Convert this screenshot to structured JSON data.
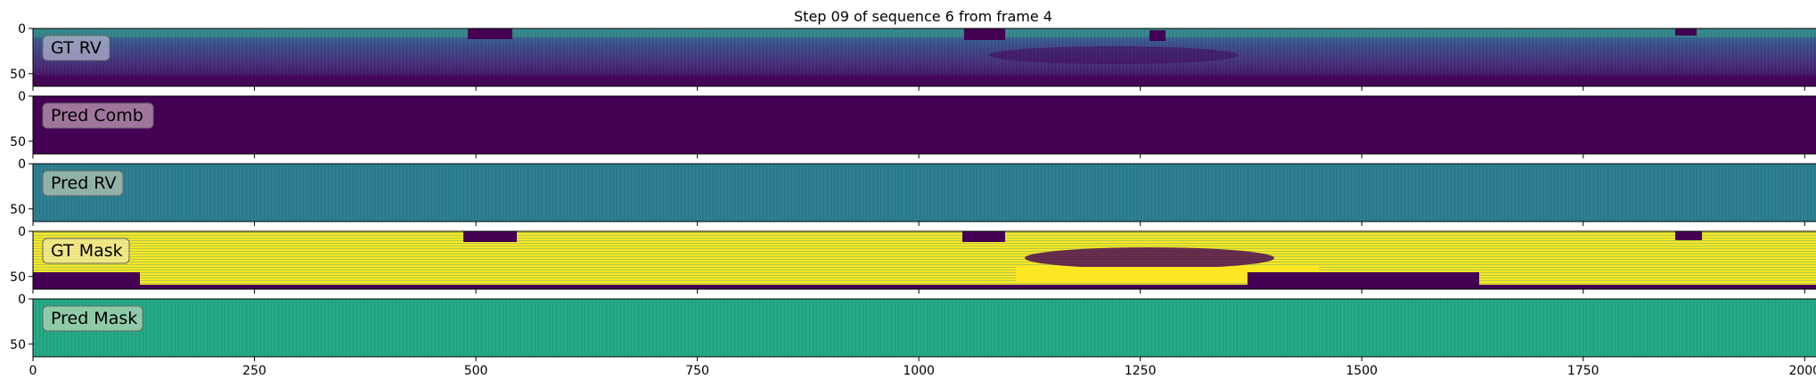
{
  "figure": {
    "title": "Step 09 of sequence 6 from frame 4"
  },
  "chart_data": [
    {
      "type": "heatmap",
      "panel_label": "GT RV",
      "content": "gt-range-image",
      "colormap": "viridis",
      "x_range": [
        0,
        2048
      ],
      "y_range": [
        0,
        64
      ],
      "label_box_color": "#b9b9d0"
    },
    {
      "type": "heatmap",
      "panel_label": "Pred Comb",
      "content": "uniform",
      "fill_color": "#440154",
      "colormap": "viridis",
      "x_range": [
        0,
        2048
      ],
      "y_range": [
        0,
        64
      ],
      "label_box_color": "#c8a8bc"
    },
    {
      "type": "heatmap",
      "panel_label": "Pred RV",
      "content": "uniform-noise",
      "fill_color": "#2b7d8f",
      "colormap": "viridis",
      "x_range": [
        0,
        2048
      ],
      "y_range": [
        0,
        64
      ],
      "label_box_color": "#bcc8b4"
    },
    {
      "type": "heatmap",
      "panel_label": "GT Mask",
      "content": "gt-mask",
      "colormap": "viridis",
      "x_range": [
        0,
        2048
      ],
      "y_range": [
        0,
        64
      ],
      "label_box_color": "#f2e8a0"
    },
    {
      "type": "heatmap",
      "panel_label": "Pred Mask",
      "content": "uniform-noise",
      "fill_color": "#23a883",
      "colormap": "viridis",
      "x_range": [
        0,
        2048
      ],
      "y_range": [
        0,
        64
      ],
      "label_box_color": "#bcd8b8"
    }
  ],
  "axes": {
    "x_ticks": [
      0,
      250,
      500,
      750,
      1000,
      1250,
      1500,
      1750,
      2000
    ],
    "x_tick_labels": [
      "0",
      "250",
      "500",
      "750",
      "1000",
      "1250",
      "1500",
      "1750",
      "2000"
    ],
    "y_ticks": [
      0,
      50
    ],
    "y_tick_labels": [
      "0",
      "50"
    ]
  },
  "colors": {
    "viridis_dark": "#440154",
    "viridis_blue": "#3b528b",
    "viridis_teal": "#21918c",
    "viridis_green": "#5ec962",
    "viridis_yellow": "#fde725"
  }
}
